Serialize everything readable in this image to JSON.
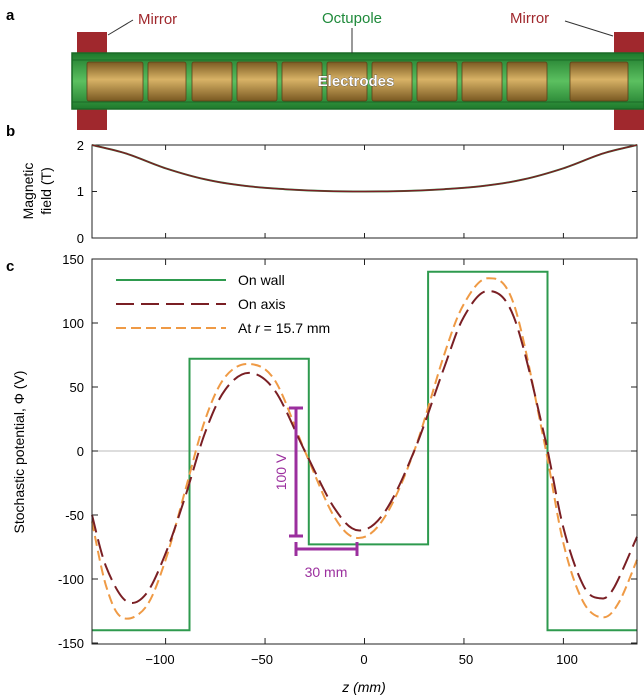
{
  "panel_a": {
    "letter": "a",
    "mirror_left_label": "Mirror",
    "mirror_right_label": "Mirror",
    "octupole_label": "Octupole",
    "electrodes_label": "Electrodes",
    "colors": {
      "mirror": "#a0282d",
      "octupole": "#2e9a3e",
      "octupole_text": "#1f8a3b",
      "electrode": "#b08a3e"
    }
  },
  "panel_b": {
    "letter": "b",
    "ylabel_line1": "Magnetic",
    "ylabel_line2": "field (T)",
    "yticks": [
      "2",
      "1",
      "0"
    ]
  },
  "panel_c": {
    "letter": "c",
    "ylabel": "Stochastic potential, Φ (V)",
    "xlabel": "z (mm)",
    "yticks": [
      "150",
      "100",
      "50",
      "0",
      "-50",
      "-100",
      "-150"
    ],
    "xticks": [
      "−100",
      "−50",
      "0",
      "50",
      "100"
    ],
    "legend": {
      "on_wall": "On wall",
      "on_axis": "On axis",
      "at_r_prefix": "At ",
      "at_r_var": "r",
      "at_r_suffix": " = 15.7 mm"
    },
    "scale_v_label": "100 V",
    "scale_h_label": "30 mm",
    "colors": {
      "wall": "#2e9a4e",
      "axis": "#7a1f24",
      "radius": "#ef9a45",
      "scale": "#9b2f9e"
    }
  },
  "chart_data": [
    {
      "type": "line",
      "panel": "b",
      "title": "",
      "xlabel": "",
      "ylabel": "Magnetic field (T)",
      "xlim": [
        -137,
        137
      ],
      "ylim": [
        0,
        2
      ],
      "series": [
        {
          "x": [
            -137,
            -120,
            -100,
            -80,
            -60,
            -40,
            -20,
            0,
            20,
            40,
            60,
            80,
            100,
            120,
            137
          ],
          "y": [
            2.0,
            1.82,
            1.5,
            1.26,
            1.12,
            1.05,
            1.01,
            1.0,
            1.01,
            1.05,
            1.12,
            1.26,
            1.5,
            1.82,
            2.0
          ]
        }
      ]
    },
    {
      "type": "line",
      "panel": "c",
      "title": "",
      "xlabel": "z (mm)",
      "ylabel": "Stochastic potential, Φ (V)",
      "xlim": [
        -137,
        137
      ],
      "ylim": [
        -155,
        150
      ],
      "grid": false,
      "legend_position": "top-left",
      "series": [
        {
          "name": "On wall",
          "x": [
            -137,
            -88,
            -88,
            -28,
            -28,
            32,
            32,
            92,
            92,
            137
          ],
          "y": [
            -140,
            -140,
            72,
            72,
            -73,
            -73,
            140,
            140,
            -140,
            -140
          ]
        },
        {
          "name": "On axis",
          "x": [
            -137,
            -130,
            -120,
            -110,
            -100,
            -90,
            -80,
            -70,
            -58,
            -45,
            -30,
            -15,
            -3,
            10,
            25,
            40,
            50,
            62,
            75,
            90,
            100,
            110,
            118,
            125,
            137
          ],
          "y": [
            -50,
            -90,
            -117,
            -112,
            -80,
            -35,
            15,
            48,
            61,
            47,
            0,
            -45,
            -62,
            -48,
            0,
            65,
            105,
            125,
            105,
            15,
            -60,
            -105,
            -115,
            -108,
            -67
          ]
        },
        {
          "name": "At r = 15.7 mm",
          "x": [
            -137,
            -130,
            -122,
            -110,
            -100,
            -90,
            -80,
            -70,
            -58,
            -45,
            -30,
            -15,
            -3,
            10,
            25,
            40,
            50,
            62,
            75,
            90,
            100,
            110,
            120,
            128,
            137
          ],
          "y": [
            -55,
            -105,
            -130,
            -122,
            -85,
            -30,
            25,
            58,
            68,
            55,
            0,
            -52,
            -68,
            -52,
            0,
            75,
            115,
            135,
            115,
            10,
            -72,
            -118,
            -130,
            -118,
            -85
          ]
        }
      ]
    }
  ]
}
